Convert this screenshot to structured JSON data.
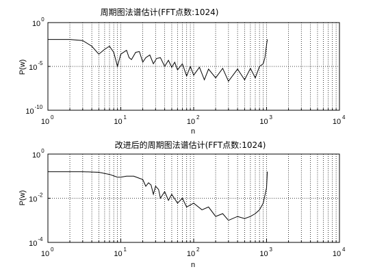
{
  "chart_data": [
    {
      "type": "line",
      "title": "周期图法谱估计(FFT点数:1024)",
      "xlabel": "n",
      "ylabel": "P(w)",
      "x_scale": "log",
      "y_scale": "log",
      "xlim": [
        1,
        10000
      ],
      "ylim": [
        1e-10,
        1
      ],
      "x_ticks": [
        {
          "base": "10",
          "exp": "0"
        },
        {
          "base": "10",
          "exp": "1"
        },
        {
          "base": "10",
          "exp": "2"
        },
        {
          "base": "10",
          "exp": "3"
        },
        {
          "base": "10",
          "exp": "4"
        }
      ],
      "y_ticks": [
        {
          "base": "10",
          "exp": "0"
        },
        {
          "base": "10",
          "exp": "-5"
        },
        {
          "base": "10",
          "exp": "-10"
        }
      ],
      "grid": true,
      "points": [
        [
          1,
          0.012
        ],
        [
          2,
          0.012
        ],
        [
          3,
          0.009
        ],
        [
          4,
          0.002
        ],
        [
          5,
          0.00025
        ],
        [
          6,
          0.0009
        ],
        [
          7,
          0.002
        ],
        [
          8,
          0.0004
        ],
        [
          9,
          1e-05
        ],
        [
          10,
          0.00025
        ],
        [
          12,
          0.0007
        ],
        [
          13,
          0.0001
        ],
        [
          14,
          6e-05
        ],
        [
          16,
          0.0004
        ],
        [
          18,
          0.0005
        ],
        [
          20,
          3e-05
        ],
        [
          22,
          0.0001
        ],
        [
          25,
          0.0002
        ],
        [
          28,
          2e-05
        ],
        [
          31,
          8e-05
        ],
        [
          35,
          0.0001
        ],
        [
          40,
          1e-05
        ],
        [
          45,
          5e-05
        ],
        [
          50,
          8e-06
        ],
        [
          55,
          3e-05
        ],
        [
          60,
          4e-06
        ],
        [
          70,
          2e-05
        ],
        [
          80,
          8e-07
        ],
        [
          90,
          1e-05
        ],
        [
          100,
          1e-06
        ],
        [
          120,
          8e-06
        ],
        [
          140,
          3e-07
        ],
        [
          160,
          5e-06
        ],
        [
          200,
          5e-07
        ],
        [
          250,
          6e-06
        ],
        [
          300,
          2e-07
        ],
        [
          400,
          5e-06
        ],
        [
          500,
          3e-07
        ],
        [
          600,
          6e-06
        ],
        [
          700,
          5e-07
        ],
        [
          800,
          1e-05
        ],
        [
          900,
          2e-05
        ],
        [
          950,
          0.0001
        ],
        [
          1000,
          0.003
        ],
        [
          1024,
          0.012
        ]
      ]
    },
    {
      "type": "line",
      "title": "改进后的周期图法谱估计(FFT点数:1024)",
      "xlabel": "n",
      "ylabel": "P(w)",
      "x_scale": "log",
      "y_scale": "log",
      "xlim": [
        1,
        10000
      ],
      "ylim": [
        0.0001,
        1
      ],
      "x_ticks": [
        {
          "base": "10",
          "exp": "0"
        },
        {
          "base": "10",
          "exp": "1"
        },
        {
          "base": "10",
          "exp": "2"
        },
        {
          "base": "10",
          "exp": "3"
        },
        {
          "base": "10",
          "exp": "4"
        }
      ],
      "y_ticks": [
        {
          "base": "10",
          "exp": "0"
        },
        {
          "base": "10",
          "exp": "-2"
        },
        {
          "base": "10",
          "exp": "-4"
        }
      ],
      "grid": true,
      "points": [
        [
          1,
          0.16
        ],
        [
          3,
          0.16
        ],
        [
          5,
          0.15
        ],
        [
          7,
          0.12
        ],
        [
          9,
          0.09
        ],
        [
          10,
          0.09
        ],
        [
          12,
          0.1
        ],
        [
          15,
          0.1
        ],
        [
          18,
          0.08
        ],
        [
          20,
          0.07
        ],
        [
          22,
          0.035
        ],
        [
          24,
          0.05
        ],
        [
          26,
          0.04
        ],
        [
          28,
          0.015
        ],
        [
          30,
          0.035
        ],
        [
          33,
          0.025
        ],
        [
          35,
          0.01
        ],
        [
          40,
          0.02
        ],
        [
          45,
          0.008
        ],
        [
          50,
          0.015
        ],
        [
          60,
          0.006
        ],
        [
          70,
          0.01
        ],
        [
          80,
          0.004
        ],
        [
          100,
          0.006
        ],
        [
          130,
          0.003
        ],
        [
          160,
          0.004
        ],
        [
          200,
          0.0015
        ],
        [
          250,
          0.002
        ],
        [
          300,
          0.001
        ],
        [
          400,
          0.0015
        ],
        [
          500,
          0.0012
        ],
        [
          600,
          0.0015
        ],
        [
          700,
          0.002
        ],
        [
          800,
          0.003
        ],
        [
          900,
          0.006
        ],
        [
          1000,
          0.03
        ],
        [
          1024,
          0.16
        ]
      ]
    }
  ]
}
